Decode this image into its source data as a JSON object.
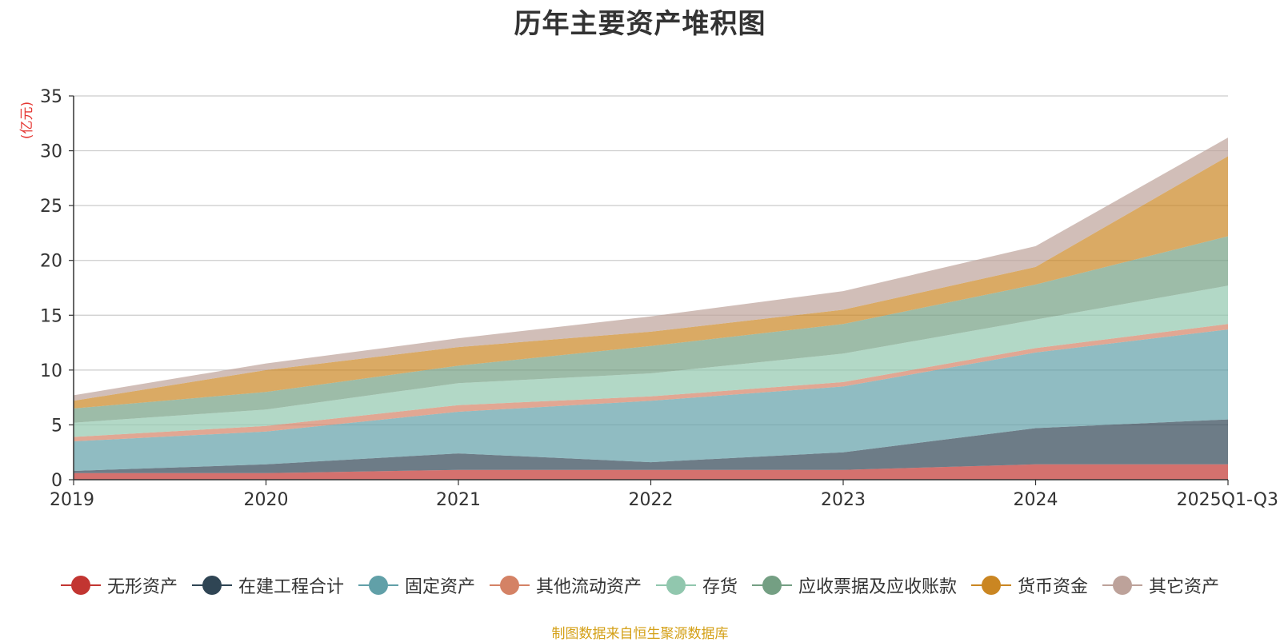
{
  "chart_data": {
    "type": "area",
    "stacked": true,
    "title": "历年主要资产堆积图",
    "ylabel": "(亿元)",
    "xlabel": "",
    "ylim": [
      0,
      35
    ],
    "yticks": [
      0,
      5,
      10,
      15,
      20,
      25,
      30,
      35
    ],
    "categories": [
      "2019",
      "2020",
      "2021",
      "2022",
      "2023",
      "2024",
      "2025Q1-Q3"
    ],
    "series": [
      {
        "name": "无形资产",
        "color": "#c23531",
        "values": [
          0.6,
          0.6,
          0.9,
          0.9,
          0.9,
          1.4,
          1.4
        ]
      },
      {
        "name": "在建工程合计",
        "color": "#2f4554",
        "values": [
          0.2,
          0.8,
          1.5,
          0.7,
          1.6,
          3.3,
          4.1
        ]
      },
      {
        "name": "固定资产",
        "color": "#61a0a8",
        "values": [
          2.7,
          3.0,
          3.8,
          5.6,
          6.0,
          6.9,
          8.2
        ]
      },
      {
        "name": "其他流动资产",
        "color": "#d48265",
        "values": [
          0.4,
          0.5,
          0.6,
          0.4,
          0.4,
          0.4,
          0.5
        ]
      },
      {
        "name": "存货",
        "color": "#91c7ae",
        "values": [
          1.3,
          1.5,
          2.0,
          2.1,
          2.6,
          2.6,
          3.5
        ]
      },
      {
        "name": "应收票据及应收账款",
        "color": "#749f83",
        "values": [
          1.3,
          1.6,
          1.6,
          2.5,
          2.7,
          3.2,
          4.5
        ]
      },
      {
        "name": "货币资金",
        "color": "#ca8622",
        "values": [
          0.7,
          2.0,
          1.7,
          1.3,
          1.3,
          1.6,
          7.3
        ]
      },
      {
        "name": "其它资产",
        "color": "#bda29a",
        "values": [
          0.5,
          0.6,
          0.8,
          1.4,
          1.7,
          1.9,
          1.7
        ]
      }
    ]
  },
  "source_note": "制图数据来自恒生聚源数据库"
}
